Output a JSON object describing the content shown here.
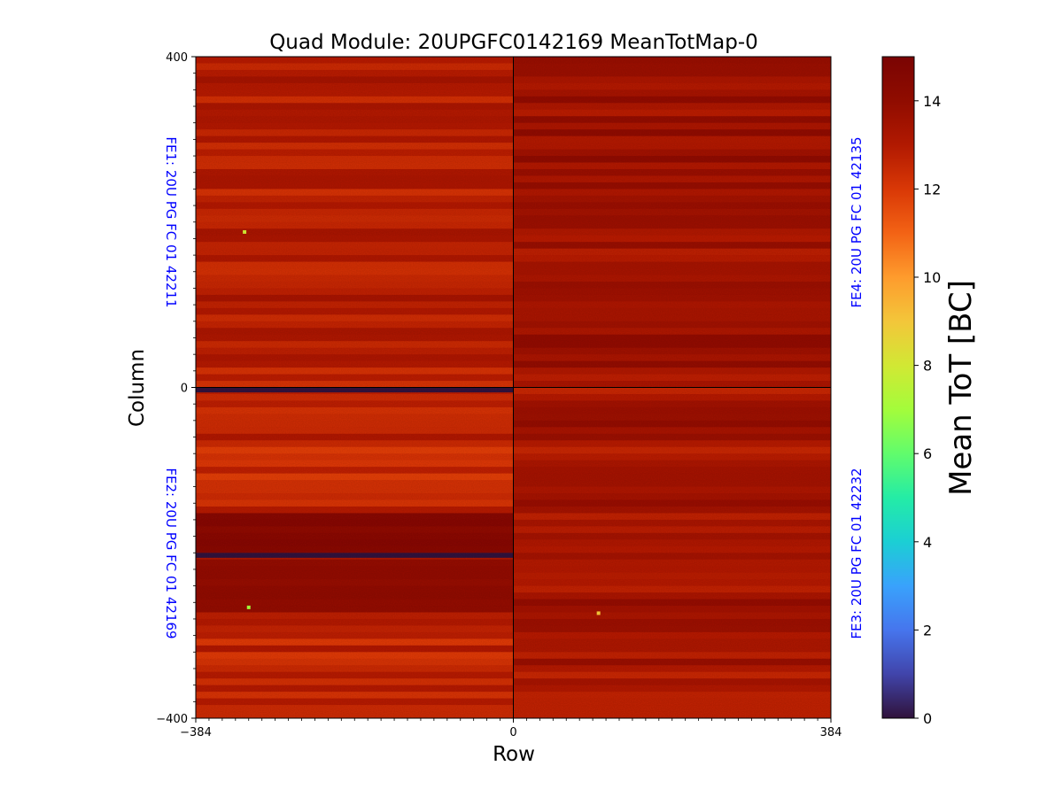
{
  "chart_data": {
    "type": "heatmap",
    "title": "Quad Module: 20UPGFC0142169 MeanTotMap-0",
    "xlabel": "Row",
    "ylabel": "Column",
    "xlim": [
      -384,
      384
    ],
    "ylim": [
      -400,
      400
    ],
    "x_ticks": [
      {
        "value": -384,
        "label": "−384"
      },
      {
        "value": 0,
        "label": "0"
      },
      {
        "value": 384,
        "label": "384"
      }
    ],
    "y_ticks": [
      {
        "value": 400,
        "label": "400"
      },
      {
        "value": 0,
        "label": "0"
      },
      {
        "value": -400,
        "label": "−400"
      }
    ],
    "colorbar": {
      "label": "Mean ToT [BC]",
      "range": [
        0,
        15
      ],
      "ticks": [
        {
          "value": 0,
          "label": "0"
        },
        {
          "value": 2,
          "label": "2"
        },
        {
          "value": 4,
          "label": "4"
        },
        {
          "value": 6,
          "label": "6"
        },
        {
          "value": 8,
          "label": "8"
        },
        {
          "value": 10,
          "label": "10"
        },
        {
          "value": 12,
          "label": "12"
        },
        {
          "value": 14,
          "label": "14"
        }
      ]
    },
    "chips": [
      {
        "id": "FE1",
        "label": "FE1: 20U PG FC 01 42211",
        "quadrant": "top-left",
        "x_range": [
          -384,
          0
        ],
        "y_range": [
          0,
          400
        ],
        "mean_tot": 12.8
      },
      {
        "id": "FE2",
        "label": "FE2: 20U PG FC 01 42169",
        "quadrant": "bottom-left",
        "x_range": [
          -384,
          0
        ],
        "y_range": [
          -400,
          0
        ],
        "mean_tot": 12.6
      },
      {
        "id": "FE3",
        "label": "FE3: 20U PG FC 01 42232",
        "quadrant": "bottom-right",
        "x_range": [
          0,
          384
        ],
        "y_range": [
          -400,
          0
        ],
        "mean_tot": 13.3
      },
      {
        "id": "FE4",
        "label": "FE4: 20U PG FC 01 42135",
        "quadrant": "top-right",
        "x_range": [
          0,
          384
        ],
        "y_range": [
          0,
          400
        ],
        "mean_tot": 13.5
      }
    ],
    "dead_rows": [
      {
        "chip": "FE2",
        "y_range": [
          -6,
          0
        ],
        "value": 0
      },
      {
        "chip": "FE2",
        "y_range": [
          -206,
          -200
        ],
        "value": 0
      }
    ],
    "dark_bands": [
      {
        "chip": "FE2",
        "y_range": [
          -200,
          -150
        ],
        "mean_tot": 14.5
      },
      {
        "chip": "FE2",
        "y_range": [
          -270,
          -210
        ],
        "mean_tot": 14.0
      }
    ],
    "hot_pixels": [
      {
        "x": -325,
        "y": 188,
        "value": 8
      },
      {
        "x": -320,
        "y": -266,
        "value": 7
      },
      {
        "x": 103,
        "y": -273,
        "value": 9
      }
    ],
    "label_color": "#0000ff"
  }
}
